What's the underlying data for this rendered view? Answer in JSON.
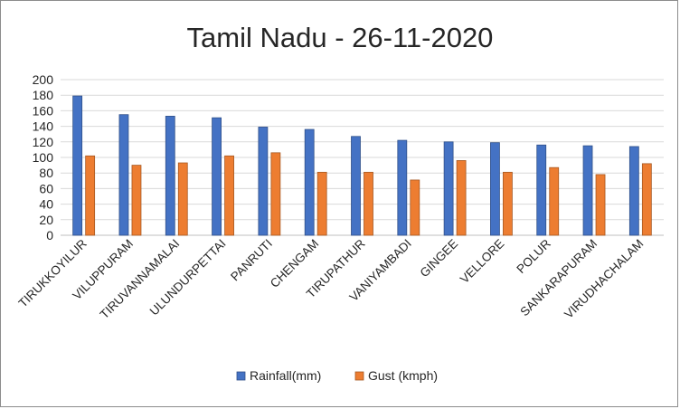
{
  "chart_data": {
    "type": "bar",
    "title": "Tamil Nadu - 26-11-2020",
    "xlabel": "",
    "ylabel": "",
    "ylim": [
      0,
      200
    ],
    "yticks": [
      0,
      20,
      40,
      60,
      80,
      100,
      120,
      140,
      160,
      180,
      200
    ],
    "grid": true,
    "legend_position": "bottom",
    "categories": [
      "TIRUKKOYILUR",
      "VILUPPURAM",
      "TIRUVANNAMALAI",
      "ULUNDURPETTAI",
      "PANRUTI",
      "CHENGAM",
      "TIRUPATHUR",
      "VANIYAMBADI",
      "GINGEE",
      "VELLORE",
      "POLUR",
      "SANKARAPURAM",
      "VIRUDHACHALAM"
    ],
    "series": [
      {
        "name": "Rainfall(mm)",
        "color": "#4472c4",
        "values": [
          179,
          155,
          153,
          151,
          139,
          136,
          127,
          122,
          120,
          119,
          116,
          115,
          114
        ]
      },
      {
        "name": "Gust (kmph)",
        "color": "#ed7d31",
        "values": [
          102,
          90,
          93,
          102,
          106,
          81,
          81,
          71,
          96,
          81,
          87,
          78,
          92
        ]
      }
    ]
  }
}
